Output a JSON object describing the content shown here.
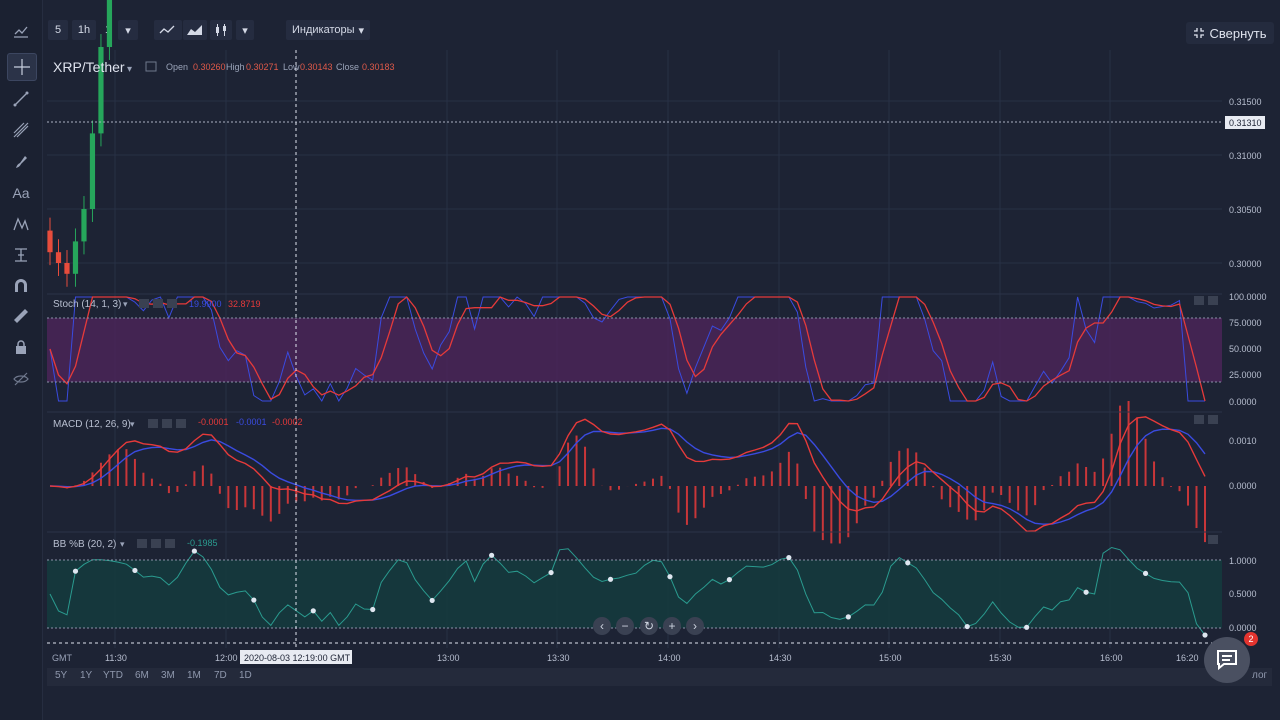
{
  "toolbar": {
    "interval_value": "5",
    "interval_unit": "1h",
    "count": "1",
    "indicators_label": "Индикаторы",
    "collapse_label": "Свернуть"
  },
  "symbol": {
    "name": "XRP/Tether",
    "open_label": "Open",
    "open": "0.30260",
    "high_label": "High",
    "high": "0.30271",
    "low_label": "Low",
    "low": "0.30143",
    "close_label": "Close",
    "close": "0.30183",
    "last_price": "0.31310"
  },
  "price_axis": [
    "0.31500",
    "0.31000",
    "0.30500",
    "0.30000"
  ],
  "stoch": {
    "label": "Stoch (14, 1, 3)",
    "k_value": "19.9900",
    "d_value": "32.8719",
    "axis": [
      "100.0000",
      "75.0000",
      "50.0000",
      "25.0000",
      "0.0000"
    ]
  },
  "macd": {
    "label": "MACD (12, 26, 9)",
    "v1": "-0.0001",
    "v2": "-0.0001",
    "v3": "-0.0002",
    "axis": [
      "0.0010",
      "0.0000"
    ]
  },
  "bb": {
    "label": "BB %B (20, 2)",
    "value": "-0.1985",
    "axis": [
      "1.0000",
      "0.5000",
      "0.0000"
    ]
  },
  "time_axis": {
    "tz": "GMT",
    "ticks": [
      "11:30",
      "12:00",
      "13:00",
      "13:30",
      "14:00",
      "14:30",
      "15:00",
      "15:30",
      "16:00",
      "16:20"
    ],
    "crosshair": "2020-08-03 12:19:00 GMT"
  },
  "ranges": [
    "5Y",
    "1Y",
    "YTD",
    "6M",
    "3M",
    "1M",
    "7D",
    "1D"
  ],
  "log_label": "лог",
  "chat_badge": "2",
  "colors": {
    "up": "#26a65b",
    "down": "#e74c3c",
    "stoch_fill": "#5a2a6a",
    "bb_fill": "#163c40",
    "macd_line": "#e63a3a",
    "signal_line": "#3a4be0"
  },
  "chart_data": {
    "type": "candlestick",
    "price_range": [
      0.2985,
      0.3185
    ],
    "candle_closes": [
      0.3001,
      0.3,
      0.2999,
      0.3002,
      0.3005,
      0.3012,
      0.302,
      0.3028,
      0.3035,
      0.304,
      0.3038,
      0.3035,
      0.3039,
      0.304,
      0.3036,
      0.3042,
      0.305,
      0.3062,
      0.3067,
      0.3063,
      0.3052,
      0.3048,
      0.3051,
      0.3053,
      0.3049,
      0.3042,
      0.3036,
      0.3041,
      0.3044,
      0.304,
      0.3037,
      0.3038,
      0.3032,
      0.3034,
      0.3028,
      0.303,
      0.3033,
      0.3031,
      0.303,
      0.3036,
      0.3038,
      0.3042,
      0.3043,
      0.3039,
      0.3036,
      0.3034,
      0.3037,
      0.304,
      0.3044,
      0.3047,
      0.3043,
      0.3049,
      0.3057,
      0.3058,
      0.3056,
      0.3059,
      0.3058,
      0.3056,
      0.3059,
      0.3062,
      0.3081,
      0.31,
      0.3106,
      0.3103,
      0.3096,
      0.3094,
      0.31,
      0.3105,
      0.3111,
      0.3115,
      0.312,
      0.3126,
      0.3132,
      0.3124,
      0.311,
      0.3107,
      0.3115,
      0.312,
      0.3125,
      0.3124,
      0.3127,
      0.3132,
      0.3138,
      0.314,
      0.3144,
      0.3151,
      0.3162,
      0.3175,
      0.3168,
      0.3146,
      0.313,
      0.3131,
      0.3125,
      0.3119,
      0.3117,
      0.312,
      0.3125,
      0.3122,
      0.3132,
      0.3143,
      0.3149,
      0.3152,
      0.3153,
      0.3146,
      0.3137,
      0.3134,
      0.313,
      0.3126,
      0.3117,
      0.3114,
      0.3118,
      0.3126,
      0.3115,
      0.3106,
      0.3098,
      0.3091,
      0.3096,
      0.3101,
      0.3097,
      0.3101,
      0.3101,
      0.3107,
      0.3102,
      0.31,
      0.3115,
      0.3136,
      0.316,
      0.3166,
      0.3163,
      0.3162,
      0.3159,
      0.316,
      0.3162,
      0.3165,
      0.3156,
      0.3141,
      0.3133
    ]
  }
}
